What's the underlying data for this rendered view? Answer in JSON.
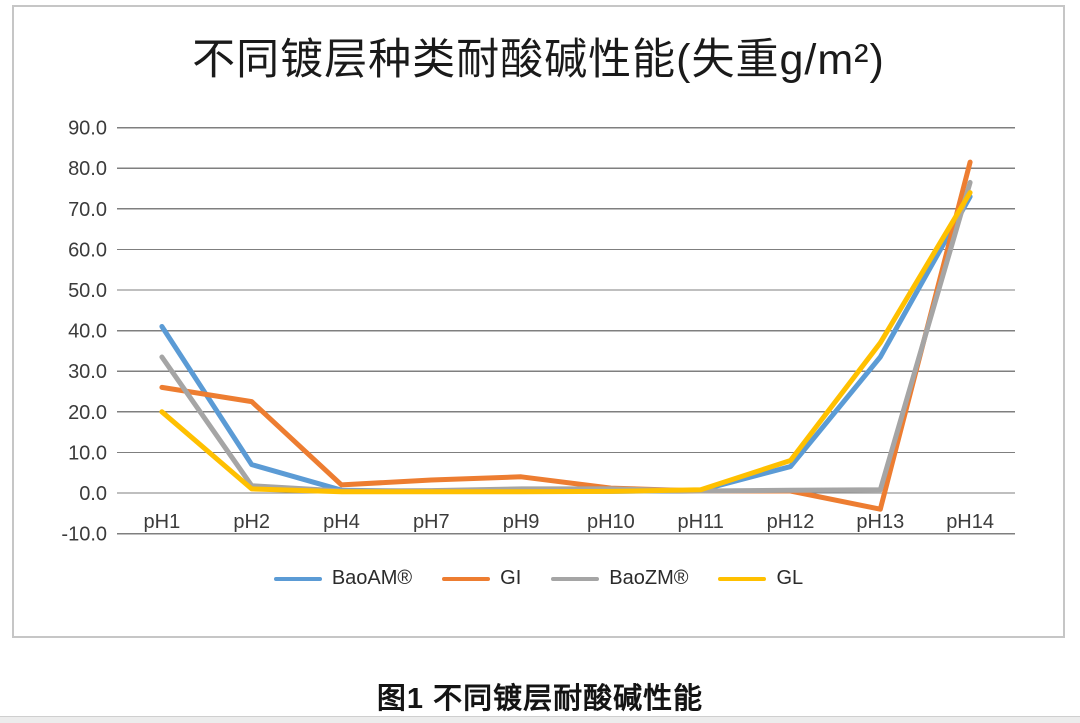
{
  "figure": {
    "title": "不同镀层种类耐酸碱性能(失重g/m²)",
    "caption": "图1 不同镀层耐酸碱性能"
  },
  "chart_data": {
    "type": "line",
    "title": "不同镀层种类耐酸碱性能(失重g/m²)",
    "categories": [
      "pH1",
      "pH2",
      "pH4",
      "pH7",
      "pH9",
      "pH10",
      "pH11",
      "pH12",
      "pH13",
      "pH14"
    ],
    "series": [
      {
        "name": "BaoAM®",
        "color": "#5B9BD5",
        "values": [
          41,
          7,
          0.7,
          0.4,
          0.5,
          0.4,
          0.7,
          6.5,
          33.5,
          73
        ]
      },
      {
        "name": "GI",
        "color": "#ED7D31",
        "values": [
          26,
          22.5,
          2,
          3.2,
          4,
          1.2,
          0.5,
          0.5,
          -4,
          81.5
        ]
      },
      {
        "name": "BaoZM®",
        "color": "#A5A5A5",
        "values": [
          33.5,
          1.8,
          0.5,
          0.6,
          1,
          1,
          0.5,
          0.7,
          0.8,
          76.5
        ]
      },
      {
        "name": "GL",
        "color": "#FFC000",
        "values": [
          20,
          1,
          0.3,
          0.3,
          0.3,
          0.4,
          0.8,
          8,
          37,
          74
        ]
      }
    ],
    "ylim": [
      -10,
      90
    ],
    "ytick_step": 10,
    "ytick_labels": [
      "90.0",
      "80.0",
      "70.0",
      "60.0",
      "50.0",
      "40.0",
      "30.0",
      "20.0",
      "10.0",
      "0.0",
      "-10.0"
    ],
    "xlabel": "",
    "ylabel": "",
    "grid": true,
    "legend_position": "bottom",
    "gridline_color": "#7f7f7f",
    "axis_label_color": "#3b3b3b"
  }
}
